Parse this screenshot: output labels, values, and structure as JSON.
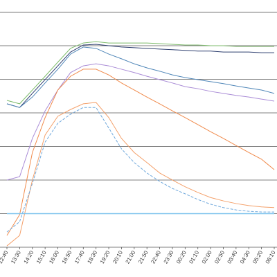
{
  "chart_data": {
    "type": "line",
    "categories": [
      "12:40",
      "13:30",
      "14:20",
      "15:10",
      "16:00",
      "16:50",
      "17:40",
      "18:30",
      "19:20",
      "20:10",
      "21:00",
      "21:50",
      "22:40",
      "23:30",
      "00:20",
      "01:10",
      "02:00",
      "02:50",
      "03:40",
      "04:30",
      "05:20",
      "06:10"
    ],
    "ylim": [
      0,
      7.36
    ],
    "y_gridlines": [
      1,
      2,
      3,
      4,
      5,
      6,
      7
    ],
    "series": [
      {
        "color": "#7dbb6b",
        "dashed": false,
        "values": [
          4.37,
          4.27,
          4.68,
          5.09,
          5.51,
          5.92,
          6.08,
          6.12,
          6.08,
          6.08,
          6.08,
          6.08,
          6.06,
          6.04,
          6.02,
          6.02,
          6.0,
          6.0,
          5.98,
          5.98,
          5.98,
          5.98
        ]
      },
      {
        "color": "#2c3d6e",
        "dashed": false,
        "values": [
          4.27,
          4.16,
          4.58,
          4.99,
          5.4,
          5.81,
          6.02,
          6.04,
          6.0,
          5.96,
          5.94,
          5.92,
          5.9,
          5.88,
          5.86,
          5.84,
          5.84,
          5.81,
          5.81,
          5.81,
          5.79,
          5.79
        ]
      },
      {
        "color": "#4f86b8",
        "dashed": false,
        "values": [
          4.27,
          4.16,
          4.47,
          4.89,
          5.3,
          5.75,
          5.96,
          5.92,
          5.75,
          5.61,
          5.46,
          5.34,
          5.24,
          5.13,
          5.05,
          4.99,
          4.93,
          4.87,
          4.8,
          4.74,
          4.68,
          4.58
        ]
      },
      {
        "color": "#a98bd6",
        "dashed": false,
        "values": [
          2.0,
          2.1,
          3.24,
          4.06,
          4.68,
          5.2,
          5.4,
          5.46,
          5.4,
          5.3,
          5.2,
          5.09,
          4.99,
          4.89,
          4.78,
          4.72,
          4.64,
          4.58,
          4.52,
          4.47,
          4.41,
          4.35
        ]
      },
      {
        "color": "#f08a4b",
        "dashed": false,
        "values": [
          0.35,
          0.97,
          2.82,
          3.86,
          4.68,
          5.09,
          5.3,
          5.3,
          5.13,
          4.89,
          4.68,
          4.47,
          4.27,
          4.06,
          3.86,
          3.65,
          3.44,
          3.24,
          3.03,
          2.82,
          2.62,
          2.31
        ]
      },
      {
        "color": "#f4a06a",
        "dashed": false,
        "values": [
          0.04,
          0.35,
          2.0,
          3.34,
          3.9,
          4.1,
          4.27,
          4.31,
          3.86,
          3.24,
          2.82,
          2.52,
          2.21,
          2.0,
          1.8,
          1.63,
          1.48,
          1.38,
          1.3,
          1.24,
          1.2,
          1.18
        ]
      },
      {
        "color": "#6fa8dc",
        "dashed": true,
        "values": [
          0.45,
          0.76,
          1.9,
          3.13,
          3.69,
          3.96,
          4.16,
          4.16,
          3.55,
          2.93,
          2.52,
          2.21,
          1.96,
          1.75,
          1.59,
          1.42,
          1.28,
          1.18,
          1.11,
          1.07,
          1.05,
          1.05
        ]
      },
      {
        "color": "#7ec3ee",
        "dashed": false,
        "values": [
          1,
          1,
          1,
          1,
          1,
          1,
          1,
          1,
          1,
          1,
          1,
          1,
          1,
          1,
          1,
          1,
          1,
          1,
          1,
          1,
          1,
          1
        ]
      }
    ]
  }
}
